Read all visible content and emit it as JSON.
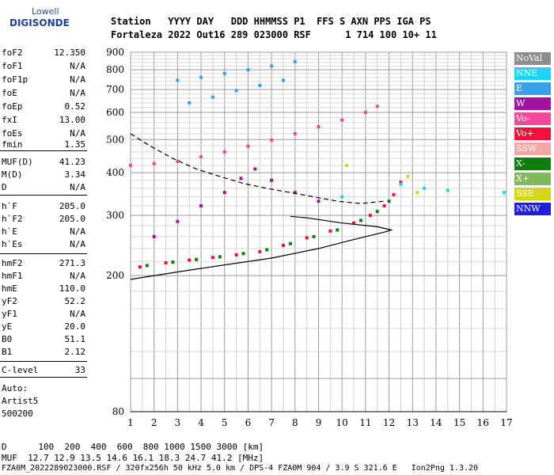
{
  "logo": {
    "line1": "Lowell",
    "line2": "DIGISONDE"
  },
  "header": {
    "row1": "Station   YYYY DAY   DDD HHMMSS P1  FFS S AXN PPS IGA PS",
    "row2": "Fortaleza 2022 Out16 289 023000 RSF      1 714 100 10+ 11"
  },
  "params": [
    {
      "name": "foF2",
      "value": "12.350"
    },
    {
      "name": "foF1",
      "value": "N/A"
    },
    {
      "name": "foF1p",
      "value": "N/A"
    },
    {
      "name": "foE",
      "value": "N/A"
    },
    {
      "name": "foEp",
      "value": "0.52"
    },
    {
      "name": "fxI",
      "value": "13.00"
    },
    {
      "name": "foEs",
      "value": "N/A"
    },
    {
      "name": "fmin",
      "value": "1.35"
    },
    {
      "name": "MUF(D)",
      "value": "41.23"
    },
    {
      "name": "M(D)",
      "value": "3.34"
    },
    {
      "name": "D",
      "value": "N/A"
    },
    {
      "name": "h`F",
      "value": "205.0"
    },
    {
      "name": "h`F2",
      "value": "205.0"
    },
    {
      "name": "h`E",
      "value": "N/A"
    },
    {
      "name": "h`Es",
      "value": "N/A"
    },
    {
      "name": "hmF2",
      "value": "271.3"
    },
    {
      "name": "hmF1",
      "value": "N/A"
    },
    {
      "name": "hmE",
      "value": "110.0"
    },
    {
      "name": "yF2",
      "value": "52.2"
    },
    {
      "name": "yF1",
      "value": "N/A"
    },
    {
      "name": "yE",
      "value": "20.0"
    },
    {
      "name": "B0",
      "value": "51.1"
    },
    {
      "name": "B1",
      "value": "2.12"
    },
    {
      "name": "C-level",
      "value": "33"
    }
  ],
  "auto": {
    "line1": "Auto:",
    "line2": "Artist5",
    "line3": "500200"
  },
  "legend": [
    {
      "label": "NoVal",
      "color": "#8c8c8c"
    },
    {
      "label": "NNE",
      "color": "#1fd3f5"
    },
    {
      "label": "E",
      "color": "#3aa0e8"
    },
    {
      "label": "W",
      "color": "#a3129f"
    },
    {
      "label": "Vo-",
      "color": "#f0489a"
    },
    {
      "label": "Vo+",
      "color": "#f0103c"
    },
    {
      "label": "SSW",
      "color": "#f3a6a6"
    },
    {
      "label": "X-",
      "color": "#0e7d10"
    },
    {
      "label": "X+",
      "color": "#82b85c"
    },
    {
      "label": "SSE",
      "color": "#d4d418"
    },
    {
      "label": "NNW",
      "color": "#2020d8"
    }
  ],
  "footer": {
    "d_row": "D      100  200  400  600  800 1000 1500 3000 [km]",
    "muf_row": "MUF  12.7 12.9 13.5 14.6 16.1 18.3 24.7 41.2 [MHz]",
    "file_row": "FZA0M_2022289023000.RSF / 320fx256h 50 kHz 5.0 km / DPS-4 FZA0M 904 / 3.9 S 321.6 E   Ion2Png 1.3.20"
  },
  "chart_data": {
    "type": "scatter",
    "title": "",
    "xlabel": "",
    "ylabel": "",
    "xlim": [
      1,
      17
    ],
    "ylim": [
      80,
      900
    ],
    "yscale": "log",
    "x_ticks": [
      "1",
      "2",
      "3",
      "4",
      "5",
      "6",
      "7",
      "8",
      "9",
      "10",
      "11",
      "12",
      "13",
      "14",
      "15",
      "16",
      "17"
    ],
    "y_ticks": [
      "80",
      "200",
      "300",
      "400",
      "500",
      "600",
      "700",
      "800",
      "900"
    ],
    "grid": true,
    "series": [
      {
        "name": "Vo+",
        "points": [
          [
            1.4,
            212
          ],
          [
            2.5,
            218
          ],
          [
            3.5,
            222
          ],
          [
            4.5,
            226
          ],
          [
            5.5,
            230
          ],
          [
            6.5,
            235
          ],
          [
            7.5,
            245
          ],
          [
            8.5,
            258
          ],
          [
            9.5,
            270
          ],
          [
            10.5,
            285
          ],
          [
            11.2,
            300
          ],
          [
            11.8,
            320
          ],
          [
            12.2,
            345
          ],
          [
            12.5,
            375
          ]
        ]
      },
      {
        "name": "X-",
        "points": [
          [
            1.7,
            214
          ],
          [
            2.8,
            219
          ],
          [
            3.8,
            223
          ],
          [
            4.8,
            227
          ],
          [
            5.8,
            232
          ],
          [
            6.8,
            238
          ],
          [
            7.8,
            248
          ],
          [
            8.8,
            260
          ],
          [
            9.8,
            272
          ],
          [
            10.8,
            290
          ],
          [
            11.5,
            308
          ],
          [
            12.0,
            330
          ]
        ]
      },
      {
        "name": "W",
        "points": [
          [
            2.0,
            260
          ],
          [
            3.0,
            288
          ],
          [
            4.0,
            320
          ],
          [
            5.0,
            350
          ],
          [
            5.7,
            385
          ],
          [
            6.3,
            410
          ],
          [
            7.0,
            380
          ],
          [
            8.0,
            350
          ],
          [
            9.0,
            330
          ]
        ]
      },
      {
        "name": "Vo-",
        "points": [
          [
            1.0,
            420
          ],
          [
            2.0,
            425
          ],
          [
            3.0,
            432
          ],
          [
            4.0,
            445
          ],
          [
            5.0,
            460
          ],
          [
            6.0,
            478
          ],
          [
            7.0,
            498
          ],
          [
            8.0,
            520
          ],
          [
            9.0,
            545
          ],
          [
            10.0,
            570
          ],
          [
            11.0,
            600
          ],
          [
            11.5,
            625
          ]
        ]
      },
      {
        "name": "E",
        "points": [
          [
            3.5,
            640
          ],
          [
            4.5,
            665
          ],
          [
            5.5,
            695
          ],
          [
            6.5,
            720
          ],
          [
            7.5,
            745
          ],
          [
            3.0,
            745
          ],
          [
            4.0,
            760
          ],
          [
            5.0,
            780
          ],
          [
            6.0,
            800
          ],
          [
            7.0,
            820
          ],
          [
            8.0,
            845
          ]
        ]
      },
      {
        "name": "NNE",
        "points": [
          [
            12.5,
            370
          ],
          [
            13.5,
            360
          ],
          [
            14.5,
            355
          ],
          [
            16.9,
            350
          ],
          [
            10.0,
            340
          ]
        ]
      },
      {
        "name": "SSE",
        "points": [
          [
            10.2,
            420
          ],
          [
            12.8,
            390
          ],
          [
            13.2,
            350
          ]
        ]
      }
    ],
    "lines": [
      {
        "name": "profile",
        "style": "solid",
        "points": [
          [
            1,
            195
          ],
          [
            3,
            205
          ],
          [
            5,
            215
          ],
          [
            7,
            225
          ],
          [
            9,
            240
          ],
          [
            10.5,
            255
          ],
          [
            11.8,
            268
          ],
          [
            12.1,
            272
          ],
          [
            11.5,
            278
          ],
          [
            10,
            285
          ],
          [
            8.5,
            295
          ],
          [
            7.8,
            298
          ]
        ]
      },
      {
        "name": "iri",
        "style": "dashed",
        "points": [
          [
            1,
            520
          ],
          [
            1.8,
            480
          ],
          [
            2.8,
            440
          ],
          [
            3.8,
            410
          ],
          [
            4.8,
            390
          ],
          [
            5.8,
            372
          ],
          [
            6.8,
            360
          ],
          [
            7.8,
            350
          ],
          [
            8.8,
            340
          ],
          [
            9.8,
            330
          ],
          [
            10.8,
            325
          ],
          [
            11.8,
            330
          ]
        ]
      }
    ]
  }
}
